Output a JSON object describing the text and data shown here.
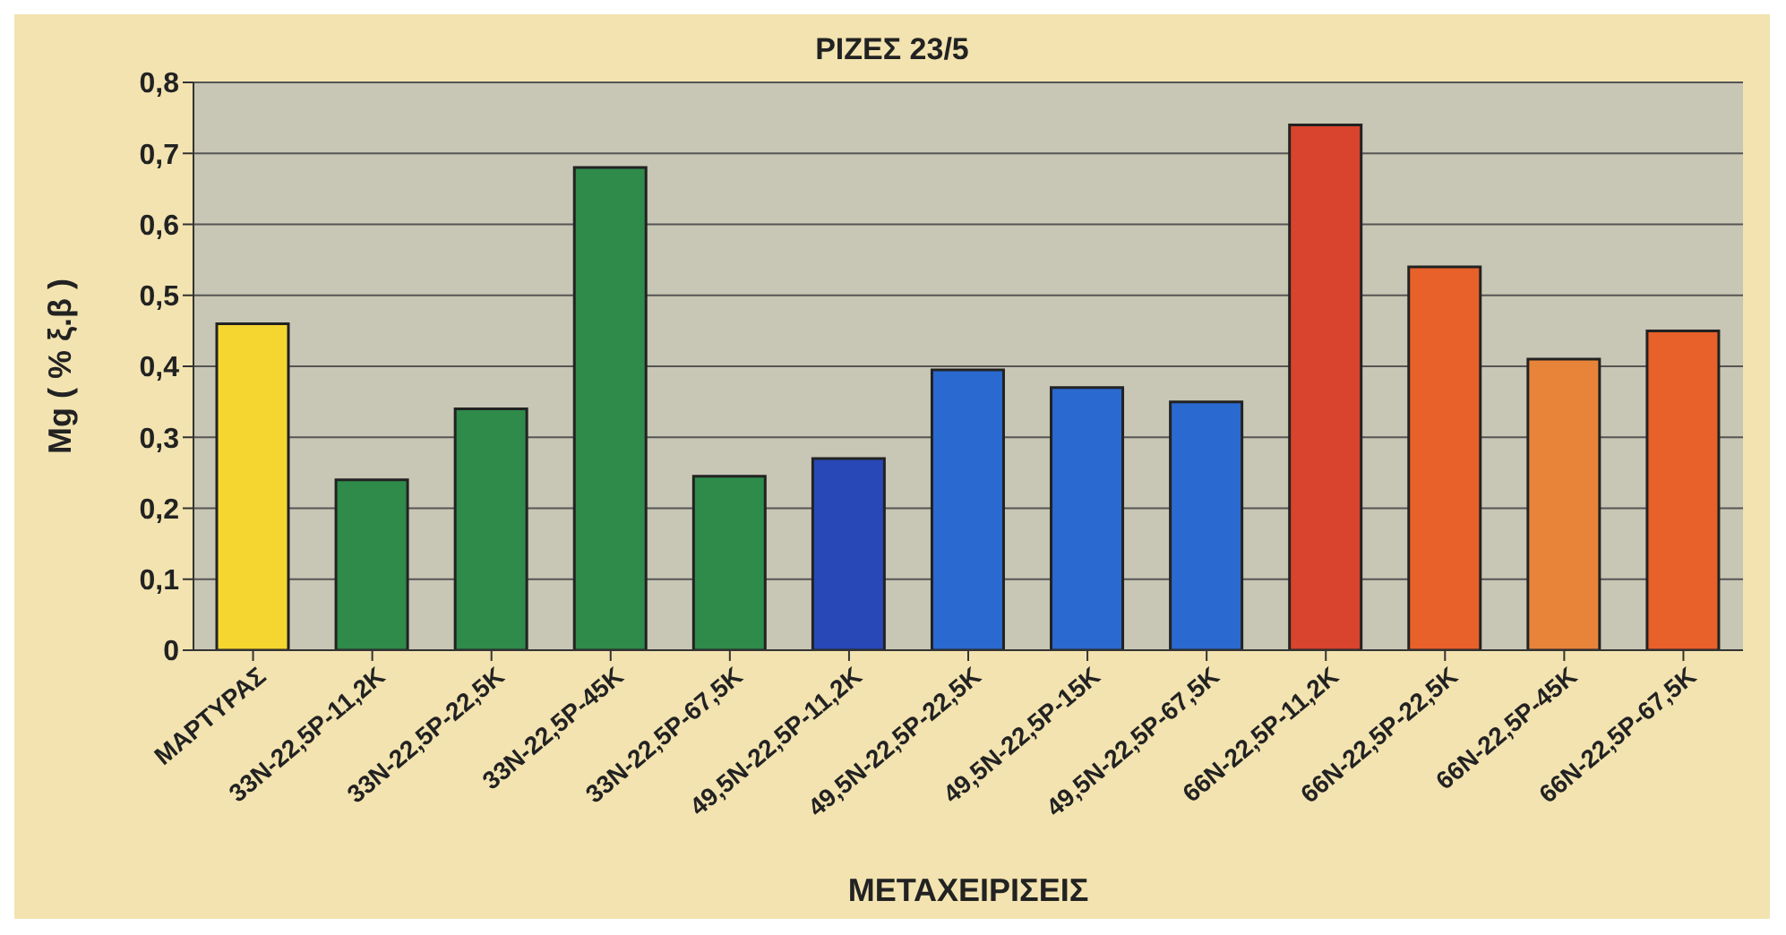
{
  "chart_data": {
    "type": "bar",
    "title": "ΡΙΖΕΣ 23/5",
    "xlabel": "ΜΕΤΑΧΕΙΡΙΣΕΙΣ",
    "ylabel": "Mg ( % ξ.β )",
    "categories": [
      "ΜΑΡΤΥΡΑΣ",
      "33N-22,5P-11,2K",
      "33N-22,5P-22,5K",
      "33N-22,5P-45K",
      "33N-22,5P-67,5K",
      "49,5N-22,5P-11,2K",
      "49,5N-22,5P-22,5K",
      "49,5N-22,5P-15K",
      "49,5N-22,5P-67,5K",
      "66N-22,5P-11,2K",
      "66N-22,5P-22,5K",
      "66N-22,5P-45K",
      "66N-22,5P-67,5K"
    ],
    "values": [
      0.46,
      0.24,
      0.34,
      0.68,
      0.245,
      0.27,
      0.395,
      0.37,
      0.35,
      0.74,
      0.54,
      0.41,
      0.45
    ],
    "colors": [
      "#f5d630",
      "#2e8b4a",
      "#2e8b4a",
      "#2e8b4a",
      "#2e8b4a",
      "#2848b8",
      "#2a6ad0",
      "#2a6ad0",
      "#2a6ad0",
      "#d9442e",
      "#e8602a",
      "#e8843a",
      "#e8602a"
    ],
    "ylim": [
      0,
      0.8
    ],
    "yticks": [
      {
        "value": 0,
        "label": "0"
      },
      {
        "value": 0.1,
        "label": "0,1"
      },
      {
        "value": 0.2,
        "label": "0,2"
      },
      {
        "value": 0.3,
        "label": "0,3"
      },
      {
        "value": 0.4,
        "label": "0,4"
      },
      {
        "value": 0.5,
        "label": "0,5"
      },
      {
        "value": 0.6,
        "label": "0,6"
      },
      {
        "value": 0.7,
        "label": "0,7"
      },
      {
        "value": 0.8,
        "label": "0,8"
      }
    ],
    "grid": "y"
  }
}
